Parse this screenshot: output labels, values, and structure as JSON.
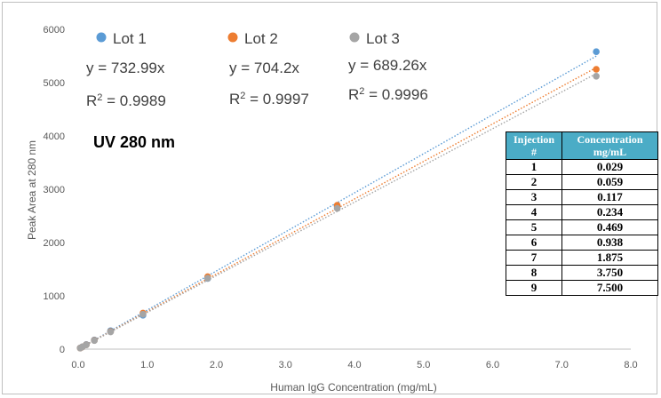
{
  "chart_data": {
    "type": "scatter",
    "title": "",
    "xlabel": "Human IgG Concentration (mg/mL)",
    "ylabel": "Peak Area at 280 nm",
    "xlim": [
      0,
      8
    ],
    "ylim": [
      0,
      6000
    ],
    "xticks": [
      "0.0",
      "1.0",
      "2.0",
      "3.0",
      "4.0",
      "5.0",
      "6.0",
      "7.0",
      "8.0"
    ],
    "yticks": [
      "0",
      "1000",
      "2000",
      "3000",
      "4000",
      "5000",
      "6000"
    ],
    "grid": false,
    "legend_position": "top",
    "x": [
      0.029,
      0.059,
      0.117,
      0.234,
      0.469,
      0.938,
      1.875,
      3.75,
      7.5
    ],
    "series": [
      {
        "name": "Lot 1",
        "color": "#5b9bd5",
        "slope": 732.99,
        "equation": "y = 732.99x",
        "r2_label": "R",
        "r2_sup": "2",
        "r2_value": " = 0.9989",
        "values": [
          21,
          43,
          86,
          172,
          344,
          636,
          1325,
          2670,
          5580
        ]
      },
      {
        "name": "Lot 2",
        "color": "#ed7d31",
        "slope": 704.2,
        "equation": "y = 704.2x",
        "r2_label": "R",
        "r2_sup": "2",
        "r2_value": " = 0.9997",
        "values": [
          20,
          41,
          82,
          165,
          330,
          676,
          1360,
          2700,
          5250
        ]
      },
      {
        "name": "Lot 3",
        "color": "#a5a5a5",
        "slope": 689.26,
        "equation": "y = 689.26x",
        "r2_label": "R",
        "r2_sup": "2",
        "r2_value": " = 0.9996",
        "values": [
          20,
          40,
          81,
          161,
          323,
          655,
          1330,
          2640,
          5120
        ]
      }
    ],
    "annotation": "UV 280 nm",
    "table": {
      "headers": [
        [
          "Injection",
          "#"
        ],
        [
          "Concentration",
          "mg/mL"
        ]
      ],
      "header_color": "#4bacc6",
      "rows": [
        [
          "1",
          "0.029"
        ],
        [
          "2",
          "0.059"
        ],
        [
          "3",
          "0.117"
        ],
        [
          "4",
          "0.234"
        ],
        [
          "5",
          "0.469"
        ],
        [
          "6",
          "0.938"
        ],
        [
          "7",
          "1.875"
        ],
        [
          "8",
          "3.750"
        ],
        [
          "9",
          "7.500"
        ]
      ]
    }
  }
}
